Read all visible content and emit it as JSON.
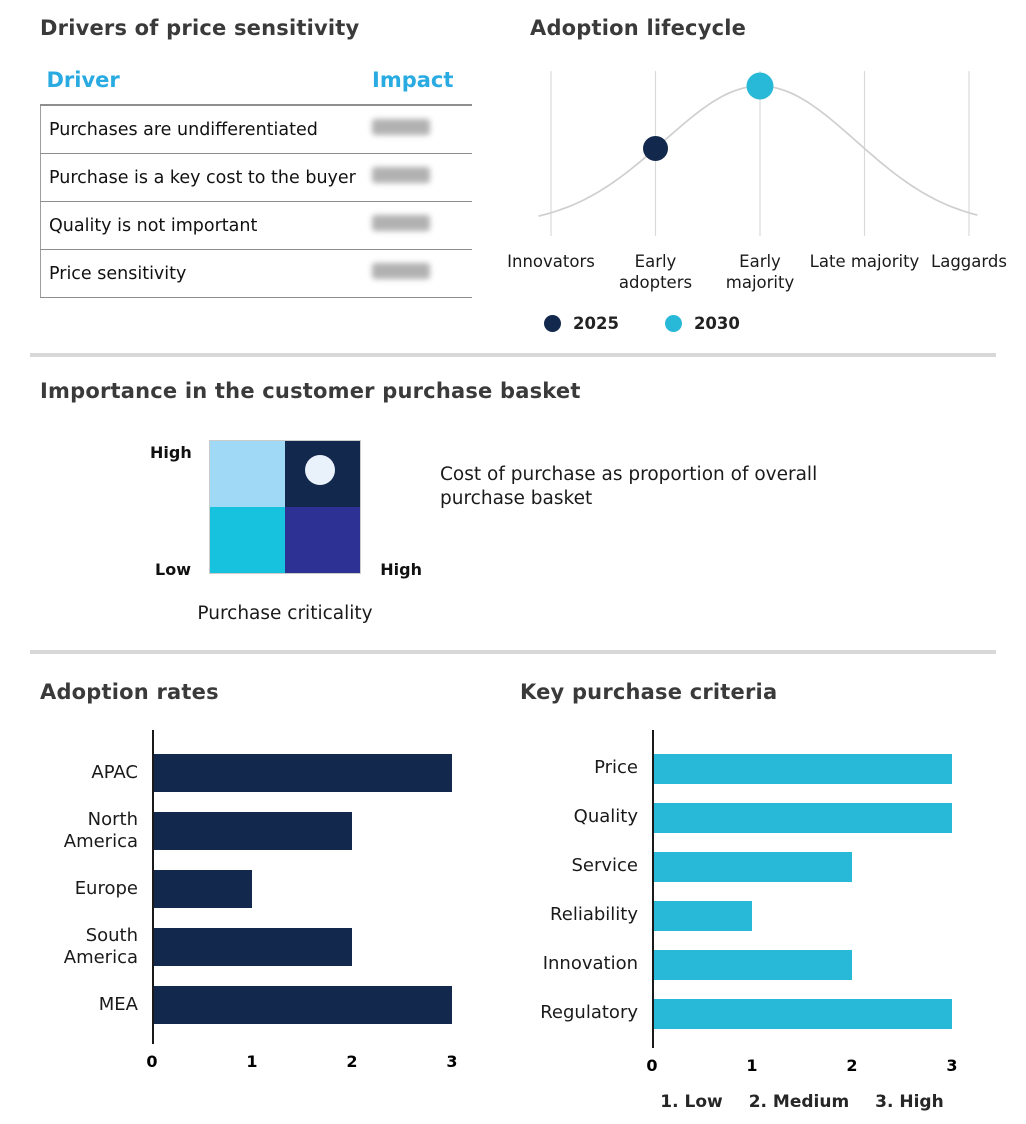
{
  "drivers": {
    "title": "Drivers of price sensitivity",
    "columns": [
      "Driver",
      "Impact"
    ],
    "rows": [
      {
        "driver": "Purchases are undifferentiated",
        "impact_redacted": true
      },
      {
        "driver": "Purchase is a key cost to the buyer",
        "impact_redacted": true
      },
      {
        "driver": "Quality is not important",
        "impact_redacted": true
      },
      {
        "driver": "Price sensitivity",
        "impact_redacted": true
      }
    ]
  },
  "colors": {
    "navy": "#12284C",
    "cyan": "#29B9D8",
    "header_cyan": "#29ABE2",
    "sky": "#9FD9F6",
    "indigo": "#2D3193",
    "matrix_cyan": "#16C2DD",
    "curve_gray": "#cfcfcf"
  },
  "chart_data": [
    {
      "id": "adoption-lifecycle",
      "type": "line",
      "title": "Adoption lifecycle",
      "curve": "bell",
      "categories": [
        "Innovators",
        "Early adopters",
        "Early majority",
        "Late majority",
        "Laggards"
      ],
      "peak_category": "Early majority",
      "grid": "vertical",
      "legend_position": "bottom",
      "series": [
        {
          "name": "2025",
          "category": "Early adopters",
          "color": "#12284C"
        },
        {
          "name": "2030",
          "category": "Early majority",
          "color": "#29B9D8"
        }
      ]
    },
    {
      "id": "purchase-basket-matrix",
      "type": "quadrant",
      "title": "Importance in the customer purchase basket",
      "x_axis": {
        "label": "Purchase criticality",
        "max_label": "High"
      },
      "y_axis": {
        "min_label": "Low",
        "max_label": "High"
      },
      "quadrants": [
        {
          "position": "top-left",
          "color": "#9FD9F6"
        },
        {
          "position": "top-right",
          "color": "#12284C",
          "marker": "circle",
          "marker_color": "#E9F2FB"
        },
        {
          "position": "bottom-left",
          "color": "#16C2DD"
        },
        {
          "position": "bottom-right",
          "color": "#2D3193"
        }
      ],
      "annotation": "Cost of purchase as proportion of overall purchase basket"
    },
    {
      "id": "adoption-rates",
      "type": "bar",
      "orientation": "horizontal",
      "title": "Adoption rates",
      "categories": [
        "APAC",
        "North America",
        "Europe",
        "South America",
        "MEA"
      ],
      "values": [
        3,
        2,
        1,
        2,
        3
      ],
      "xlim": [
        0,
        3
      ],
      "ticks": [
        0,
        1,
        2,
        3
      ],
      "color": "#12284C"
    },
    {
      "id": "key-purchase-criteria",
      "type": "bar",
      "orientation": "horizontal",
      "title": "Key purchase criteria",
      "categories": [
        "Price",
        "Quality",
        "Service",
        "Reliability",
        "Innovation",
        "Regulatory"
      ],
      "values": [
        3,
        3,
        2,
        1,
        2,
        3
      ],
      "xlim": [
        0,
        3
      ],
      "ticks": [
        0,
        1,
        2,
        3
      ],
      "color": "#29B9D8",
      "footnote_items": [
        "1. Low",
        "2. Medium",
        "3. High"
      ]
    }
  ]
}
